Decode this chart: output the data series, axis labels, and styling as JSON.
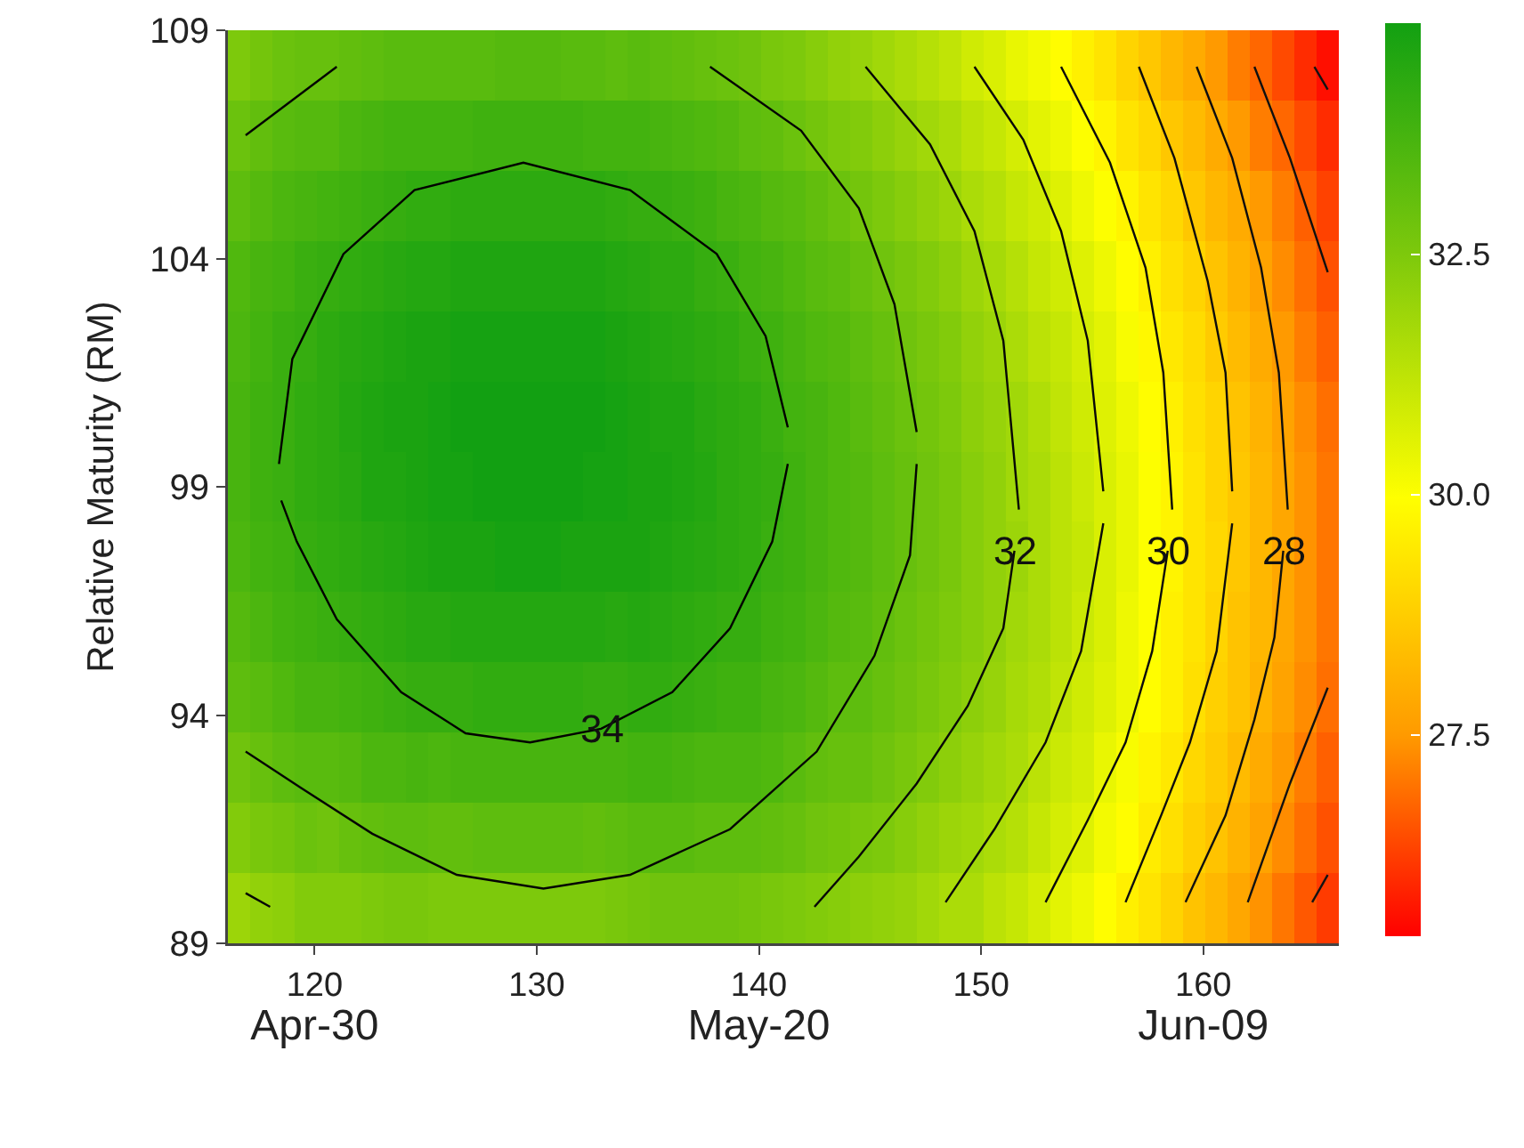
{
  "chart_data": {
    "type": "heatmap",
    "ylabel": "Relative Maturity (RM)",
    "x": [
      116.6,
      117.6,
      118.6,
      119.6,
      120.6,
      121.6,
      122.6,
      123.6,
      124.6,
      125.6,
      126.6,
      127.6,
      128.6,
      129.6,
      130.6,
      131.6,
      132.6,
      133.6,
      134.6,
      135.6,
      136.6,
      137.6,
      138.6,
      139.6,
      140.6,
      141.6,
      142.6,
      143.6,
      144.6,
      145.6,
      146.6,
      147.6,
      148.6,
      149.6,
      150.6,
      151.6,
      152.6,
      153.6,
      154.6,
      155.6,
      156.6,
      157.6,
      158.6,
      159.6,
      160.6,
      161.6,
      162.6,
      163.6,
      164.6,
      165.6
    ],
    "series": [
      {
        "type": "line",
        "color": "#000000",
        "x": [
          118.4,
          119.0,
          121.3,
          124.5,
          129.4,
          134.2,
          138.1,
          140.3,
          141.3
        ],
        "values": [
          99.5,
          101.8,
          104.1,
          105.5,
          106.1,
          105.5,
          104.1,
          102.3,
          100.3
        ]
      },
      {
        "type": "line",
        "color": "#010101",
        "x": [
          118.5,
          119.2,
          121.0,
          123.9,
          126.8,
          129.7,
          132.9,
          136.1,
          138.7,
          140.6,
          141.3
        ],
        "values": [
          98.7,
          97.8,
          96.1,
          94.5,
          93.6,
          93.4,
          93.7,
          94.5,
          95.9,
          97.8,
          99.5
        ]
      },
      {
        "type": "line",
        "color": "#020202",
        "x": [
          116.9,
          121.0
        ],
        "values": [
          106.7,
          108.2
        ]
      },
      {
        "type": "line",
        "color": "#030303",
        "x": [
          137.8,
          141.9,
          144.5,
          146.1,
          147.1
        ],
        "values": [
          108.2,
          106.8,
          105.1,
          103.0,
          100.2
        ]
      },
      {
        "type": "line",
        "color": "#040404",
        "x": [
          116.9,
          119.4,
          122.6,
          126.4,
          130.3,
          134.2,
          138.7,
          142.6,
          145.2,
          146.8,
          147.1
        ],
        "values": [
          93.2,
          92.4,
          91.4,
          90.5,
          90.2,
          90.5,
          91.5,
          93.2,
          95.3,
          97.5,
          99.5
        ]
      },
      {
        "type": "line",
        "color": "#050505",
        "x": [
          116.9,
          118.0
        ],
        "values": [
          90.1,
          89.8
        ]
      },
      {
        "type": "line",
        "color": "#060606",
        "x": [
          144.8,
          147.7,
          149.7,
          151.0,
          151.7
        ],
        "values": [
          108.2,
          106.5,
          104.6,
          102.2,
          98.5
        ]
      },
      {
        "type": "line",
        "color": "#070707",
        "x": [
          142.5,
          144.5,
          147.1,
          149.4,
          151.0,
          151.5
        ],
        "values": [
          89.8,
          90.9,
          92.5,
          94.2,
          95.9,
          97.6
        ]
      },
      {
        "type": "line",
        "color": "#080808",
        "x": [
          149.7,
          151.9,
          153.6,
          154.8,
          155.5
        ],
        "values": [
          108.2,
          106.6,
          104.6,
          102.2,
          98.9
        ]
      },
      {
        "type": "line",
        "color": "#090909",
        "x": [
          148.4,
          150.6,
          152.9,
          154.5,
          155.5
        ],
        "values": [
          89.9,
          91.5,
          93.4,
          95.4,
          98.2
        ]
      },
      {
        "type": "line",
        "color": "#0a0a0a",
        "x": [
          153.6,
          155.8,
          157.4,
          158.2,
          158.6
        ],
        "values": [
          108.2,
          106.1,
          103.8,
          101.5,
          98.5
        ]
      },
      {
        "type": "line",
        "color": "#0b0b0b",
        "x": [
          152.9,
          154.8,
          156.5,
          157.7,
          158.4
        ],
        "values": [
          89.9,
          91.7,
          93.4,
          95.4,
          97.6
        ]
      },
      {
        "type": "line",
        "color": "#0c0c0c",
        "x": [
          157.1,
          158.7,
          160.2,
          161.0,
          161.3
        ],
        "values": [
          108.2,
          106.2,
          103.5,
          101.5,
          98.9
        ]
      },
      {
        "type": "line",
        "color": "#0d0d0d",
        "x": [
          156.5,
          158.1,
          159.4,
          160.6,
          161.3
        ],
        "values": [
          89.9,
          91.8,
          93.4,
          95.4,
          98.2
        ]
      },
      {
        "type": "line",
        "color": "#0e0e0e",
        "x": [
          159.7,
          161.3,
          162.6,
          163.4,
          163.8
        ],
        "values": [
          108.2,
          106.2,
          103.8,
          101.5,
          98.5
        ]
      },
      {
        "type": "line",
        "color": "#0f0f0f",
        "x": [
          159.2,
          161.0,
          162.3,
          163.2,
          163.6
        ],
        "values": [
          89.9,
          91.8,
          93.9,
          95.7,
          97.6
        ]
      },
      {
        "type": "line",
        "color": "#101010",
        "x": [
          162.3,
          163.9,
          165.6
        ],
        "values": [
          108.2,
          106.2,
          103.7
        ]
      },
      {
        "type": "line",
        "color": "#111111",
        "x": [
          162.0,
          163.9,
          165.6
        ],
        "values": [
          89.9,
          92.5,
          94.6
        ]
      },
      {
        "type": "line",
        "color": "#121212",
        "x": [
          165.0,
          165.6
        ],
        "values": [
          108.2,
          107.7
        ]
      },
      {
        "type": "line",
        "color": "#131313",
        "x": [
          164.9,
          165.6
        ],
        "values": [
          89.9,
          90.5
        ]
      }
    ],
    "cells": [
      [
        32.5,
        32.7,
        32.9,
        33.0,
        33.0,
        33.1,
        33.2,
        33.3,
        33.3,
        33.3,
        33.3,
        33.3,
        33.4,
        33.4,
        33.4,
        33.3,
        33.3,
        33.2,
        33.3,
        33.2,
        33.1,
        33.0,
        32.9,
        32.8,
        32.6,
        32.5,
        32.3,
        32.1,
        32.0,
        31.8,
        31.6,
        31.4,
        31.2,
        30.9,
        30.7,
        30.4,
        30.2,
        29.9,
        29.6,
        29.3,
        28.9,
        28.6,
        28.2,
        27.9,
        27.5,
        27.1,
        26.8,
        26.4,
        26.0,
        25.6
      ],
      [
        32.9,
        33.1,
        33.3,
        33.4,
        33.4,
        33.6,
        33.7,
        33.8,
        33.8,
        33.8,
        33.8,
        33.9,
        33.9,
        33.9,
        33.9,
        33.9,
        33.8,
        33.8,
        33.8,
        33.7,
        33.6,
        33.5,
        33.4,
        33.2,
        33.1,
        32.9,
        32.7,
        32.5,
        32.4,
        32.2,
        32.0,
        31.8,
        31.6,
        31.3,
        31.1,
        30.8,
        30.5,
        30.3,
        30.0,
        29.7,
        29.3,
        29.0,
        28.6,
        28.3,
        27.9,
        27.5,
        27.1,
        26.8,
        26.4,
        26.0
      ],
      [
        33.2,
        33.4,
        33.6,
        33.7,
        33.8,
        33.9,
        34.0,
        34.1,
        34.2,
        34.2,
        34.3,
        34.3,
        34.3,
        34.3,
        34.3,
        34.3,
        34.3,
        34.2,
        34.1,
        34.1,
        34.0,
        33.9,
        33.7,
        33.6,
        33.4,
        33.3,
        33.1,
        32.9,
        32.7,
        32.5,
        32.3,
        32.1,
        31.9,
        31.6,
        31.4,
        31.1,
        30.9,
        30.6,
        30.3,
        30.0,
        29.7,
        29.3,
        29.0,
        28.6,
        28.2,
        27.9,
        27.5,
        27.1,
        26.7,
        26.3
      ],
      [
        33.5,
        33.7,
        33.8,
        34.0,
        34.1,
        34.2,
        34.3,
        34.4,
        34.5,
        34.5,
        34.6,
        34.6,
        34.6,
        34.6,
        34.6,
        34.6,
        34.6,
        34.5,
        34.4,
        34.3,
        34.3,
        34.1,
        34.0,
        33.8,
        33.7,
        33.5,
        33.3,
        33.2,
        33.0,
        32.8,
        32.6,
        32.4,
        32.2,
        31.9,
        31.7,
        31.4,
        31.1,
        30.9,
        30.6,
        30.3,
        29.9,
        29.6,
        29.2,
        28.9,
        28.5,
        28.1,
        27.7,
        27.3,
        26.9,
        26.5
      ],
      [
        33.6,
        33.8,
        34.0,
        34.1,
        34.3,
        34.4,
        34.5,
        34.6,
        34.7,
        34.7,
        34.8,
        34.8,
        34.8,
        34.8,
        34.8,
        34.8,
        34.8,
        34.7,
        34.6,
        34.5,
        34.4,
        34.3,
        34.2,
        34.0,
        33.9,
        33.7,
        33.5,
        33.4,
        33.2,
        33.0,
        32.8,
        32.6,
        32.4,
        32.1,
        31.9,
        31.6,
        31.3,
        31.1,
        30.8,
        30.5,
        30.1,
        29.8,
        29.4,
        29.1,
        28.7,
        28.3,
        27.9,
        27.5,
        27.1,
        26.7
      ],
      [
        33.7,
        33.9,
        34.0,
        34.2,
        34.3,
        34.5,
        34.6,
        34.7,
        34.7,
        34.8,
        34.9,
        34.9,
        34.9,
        34.9,
        34.9,
        34.9,
        34.9,
        34.8,
        34.7,
        34.6,
        34.6,
        34.4,
        34.3,
        34.2,
        34.0,
        33.8,
        33.7,
        33.5,
        33.3,
        33.1,
        32.9,
        32.7,
        32.5,
        32.2,
        32.0,
        31.8,
        31.5,
        31.2,
        30.9,
        30.6,
        30.3,
        29.9,
        29.6,
        29.2,
        28.9,
        28.5,
        28.1,
        27.7,
        27.3,
        26.9
      ],
      [
        33.7,
        33.9,
        34.0,
        34.2,
        34.3,
        34.4,
        34.6,
        34.6,
        34.7,
        34.8,
        34.8,
        34.9,
        34.9,
        34.9,
        34.9,
        34.9,
        34.8,
        34.8,
        34.7,
        34.7,
        34.6,
        34.5,
        34.3,
        34.2,
        34.1,
        33.9,
        33.7,
        33.5,
        33.4,
        33.2,
        33.0,
        32.8,
        32.6,
        32.3,
        32.1,
        31.8,
        31.6,
        31.3,
        31.0,
        30.7,
        30.4,
        30.0,
        29.7,
        29.3,
        28.9,
        28.6,
        28.2,
        27.8,
        27.4,
        27.0
      ],
      [
        33.6,
        33.8,
        33.9,
        34.1,
        34.2,
        34.3,
        34.4,
        34.5,
        34.6,
        34.7,
        34.7,
        34.7,
        34.8,
        34.8,
        34.8,
        34.7,
        34.7,
        34.7,
        34.7,
        34.6,
        34.5,
        34.4,
        34.3,
        34.2,
        34.0,
        33.9,
        33.7,
        33.5,
        33.4,
        33.2,
        33.0,
        32.8,
        32.6,
        32.3,
        32.1,
        31.9,
        31.6,
        31.3,
        31.1,
        30.7,
        30.4,
        30.0,
        29.7,
        29.3,
        29.0,
        28.6,
        28.2,
        27.8,
        27.4,
        27.0
      ],
      [
        33.4,
        33.6,
        33.8,
        33.9,
        34.0,
        34.1,
        34.2,
        34.3,
        34.4,
        34.4,
        34.5,
        34.5,
        34.5,
        34.5,
        34.5,
        34.5,
        34.5,
        34.4,
        34.5,
        34.4,
        34.3,
        34.2,
        34.1,
        34.1,
        33.9,
        33.8,
        33.6,
        33.4,
        33.3,
        33.1,
        32.9,
        32.7,
        32.5,
        32.3,
        32.1,
        31.8,
        31.6,
        31.3,
        31.0,
        30.7,
        30.3,
        30.0,
        29.6,
        29.3,
        28.9,
        28.5,
        28.2,
        27.8,
        27.4,
        27.0
      ],
      [
        33.2,
        33.3,
        33.5,
        33.7,
        33.7,
        33.8,
        33.9,
        34.0,
        34.1,
        34.1,
        34.1,
        34.2,
        34.2,
        34.2,
        34.2,
        34.2,
        34.1,
        34.1,
        34.2,
        34.2,
        34.1,
        34.0,
        33.9,
        33.9,
        33.7,
        33.6,
        33.4,
        33.2,
        33.2,
        33.0,
        32.8,
        32.6,
        32.4,
        32.2,
        32.0,
        31.7,
        31.5,
        31.2,
        30.9,
        30.6,
        30.3,
        29.9,
        29.6,
        29.2,
        28.8,
        28.5,
        28.1,
        27.7,
        27.3,
        26.9
      ],
      [
        32.8,
        33.0,
        33.2,
        33.3,
        33.3,
        33.4,
        33.6,
        33.6,
        33.7,
        33.6,
        33.7,
        33.7,
        33.7,
        33.7,
        33.7,
        33.7,
        33.7,
        33.7,
        33.8,
        33.8,
        33.7,
        33.6,
        33.6,
        33.6,
        33.5,
        33.3,
        33.1,
        33.0,
        33.0,
        32.8,
        32.6,
        32.4,
        32.2,
        32.0,
        31.8,
        31.6,
        31.3,
        31.0,
        30.8,
        30.4,
        30.1,
        29.7,
        29.4,
        29.0,
        28.7,
        28.3,
        27.9,
        27.5,
        27.1,
        26.7
      ],
      [
        32.4,
        32.6,
        32.7,
        32.9,
        32.8,
        33.0,
        33.1,
        33.2,
        33.2,
        33.1,
        33.1,
        33.2,
        33.2,
        33.2,
        33.2,
        33.2,
        33.1,
        33.2,
        33.3,
        33.3,
        33.3,
        33.2,
        33.2,
        33.2,
        33.1,
        33.0,
        32.8,
        32.7,
        32.6,
        32.5,
        32.3,
        32.1,
        31.9,
        31.8,
        31.6,
        31.4,
        31.1,
        30.8,
        30.6,
        30.2,
        29.9,
        29.5,
        29.2,
        28.8,
        28.5,
        28.1,
        27.7,
        27.3,
        26.9,
        26.5
      ],
      [
        31.9,
        32.1,
        32.2,
        32.4,
        32.4,
        32.4,
        32.5,
        32.6,
        32.6,
        32.5,
        32.5,
        32.5,
        32.5,
        32.5,
        32.5,
        32.5,
        32.5,
        32.6,
        32.7,
        32.8,
        32.8,
        32.8,
        32.8,
        32.7,
        32.6,
        32.5,
        32.4,
        32.3,
        32.2,
        32.1,
        32.0,
        31.8,
        31.6,
        31.6,
        31.3,
        31.1,
        30.8,
        30.5,
        30.3,
        29.9,
        29.6,
        29.3,
        28.9,
        28.5,
        28.2,
        27.8,
        27.4,
        27.0,
        26.6,
        26.2
      ]
    ],
    "xlim": [
      116.1,
      166.1
    ],
    "xticks": [
      {
        "value": 120,
        "label": "120\nApr-30"
      },
      130,
      {
        "value": 140,
        "label": "140\nMay-20"
      },
      150,
      {
        "value": 160,
        "label": "160\nJun-09"
      }
    ],
    "ylim": [
      89,
      109
    ],
    "yticks": [
      89,
      94,
      99,
      104,
      109
    ],
    "clim": [
      25.4,
      34.9
    ],
    "cticks": [
      27.5,
      {
        "value": 30,
        "label": "30.0"
      },
      32.5
    ],
    "annotations": [
      {
        "text": "34",
        "x": 132.9,
        "y": 93.7
      },
      {
        "text": "32",
        "x": 151.5,
        "y": 97.6
      },
      {
        "text": "30",
        "x": 158.4,
        "y": 97.6
      },
      {
        "text": "28",
        "x": 163.6,
        "y": 97.6
      }
    ]
  }
}
